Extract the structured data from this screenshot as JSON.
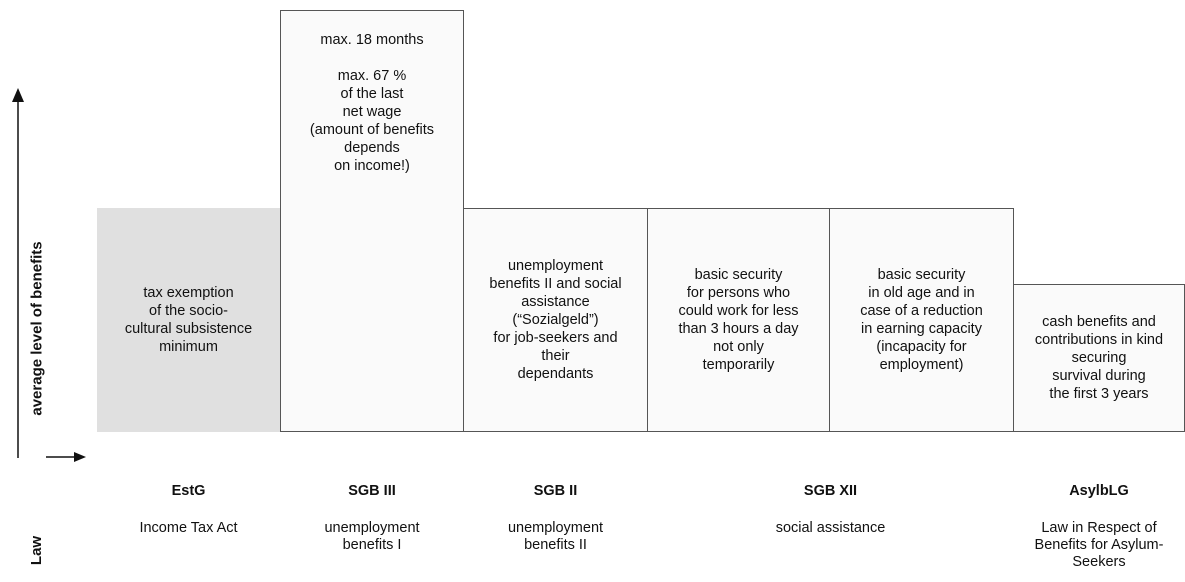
{
  "axis": {
    "y_label": "average level of benefits",
    "law_label": "Law"
  },
  "columns": [
    {
      "text": "tax exemption\nof the socio-\ncultural  subsistence\nminimum"
    },
    {
      "text": "max. 18 months\n\nmax. 67 %\nof the last\nnet wage\n(amount of  benefits\ndepends\non income!)"
    },
    {
      "text": "unemployment\nbenefits II and social\nassistance\n(“Sozialgeld”)\nfor job-seekers and\ntheir\ndependants"
    },
    {
      "text": "basic security\nfor persons who\ncould work for less\nthan 3 hours a day\nnot only\ntemporarily"
    },
    {
      "text": "basic security\nin old age and in\ncase of a reduction\nin earning capacity\n(incapacity for\nemployment)"
    },
    {
      "text": "cash benefits and\ncontributions in kind\nsecuring\nsurvival during\nthe first 3 years"
    }
  ],
  "laws": [
    {
      "code": "EstG",
      "name": "Income Tax Act"
    },
    {
      "code": "SGB III",
      "name": "unemployment\nbenefits I"
    },
    {
      "code": "SGB II",
      "name": "unemployment\nbenefits II"
    },
    {
      "code": "SGB XII",
      "name": "social assistance"
    },
    {
      "code": "AsylbLG",
      "name": "Law in Respect of\nBenefits for Asylum-\nSeekers"
    }
  ]
}
